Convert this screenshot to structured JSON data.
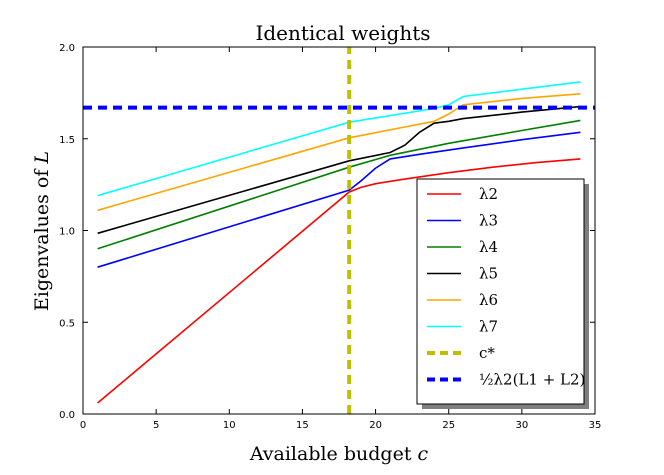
{
  "chart_data": {
    "type": "line",
    "title": "Identical weights",
    "xlabel": "Available budget c",
    "ylabel": "Eigenvalues of L",
    "xlim": [
      0,
      35
    ],
    "ylim": [
      0.0,
      2.0
    ],
    "xticks": [
      0,
      5,
      10,
      15,
      20,
      25,
      30,
      35
    ],
    "yticks": [
      0.0,
      0.5,
      1.0,
      1.5,
      2.0
    ],
    "xtick_labels": [
      "0",
      "5",
      "10",
      "15",
      "20",
      "25",
      "30",
      "35"
    ],
    "ytick_labels": [
      "0.0",
      "0.5",
      "1.0",
      "1.5",
      "2.0"
    ],
    "legend_position": "lower-right",
    "series": [
      {
        "name": "λ2",
        "color": "#ff0000",
        "style": "solid",
        "x": [
          1,
          18.2,
          19,
          20,
          22,
          25,
          28,
          31,
          34
        ],
        "y": [
          0.06,
          1.21,
          1.235,
          1.255,
          1.28,
          1.315,
          1.345,
          1.37,
          1.39
        ]
      },
      {
        "name": "λ3",
        "color": "#0000ff",
        "style": "solid",
        "x": [
          1,
          18.2,
          19,
          20,
          21,
          23,
          26,
          30,
          34
        ],
        "y": [
          0.8,
          1.22,
          1.27,
          1.34,
          1.39,
          1.415,
          1.45,
          1.495,
          1.535
        ]
      },
      {
        "name": "λ4",
        "color": "#008000",
        "style": "solid",
        "x": [
          1,
          18.2,
          21,
          25,
          30,
          34
        ],
        "y": [
          0.9,
          1.345,
          1.41,
          1.475,
          1.545,
          1.6
        ]
      },
      {
        "name": "λ5",
        "color": "#000000",
        "style": "solid",
        "x": [
          1,
          18.2,
          21,
          22,
          23,
          24,
          25,
          26,
          30,
          34
        ],
        "y": [
          0.985,
          1.38,
          1.425,
          1.465,
          1.535,
          1.585,
          1.595,
          1.61,
          1.645,
          1.675
        ]
      },
      {
        "name": "λ6",
        "color": "#ffa500",
        "style": "solid",
        "x": [
          1,
          18.2,
          24,
          25,
          26,
          30,
          34
        ],
        "y": [
          1.11,
          1.505,
          1.595,
          1.635,
          1.685,
          1.72,
          1.745
        ]
      },
      {
        "name": "λ7",
        "color": "#00ffff",
        "style": "solid",
        "x": [
          1,
          18.2,
          24,
          25,
          26,
          30,
          34
        ],
        "y": [
          1.19,
          1.59,
          1.665,
          1.685,
          1.73,
          1.77,
          1.81
        ]
      },
      {
        "name": "c*",
        "color": "#bfbf00",
        "style": "dashed-vertical",
        "x": [
          18.2,
          18.2
        ],
        "y": [
          0.0,
          2.0
        ]
      },
      {
        "name": "½λ2(L1 + L2)",
        "color": "#0000ff",
        "style": "dashed-horizontal",
        "x": [
          0,
          35
        ],
        "y": [
          1.67,
          1.67
        ]
      }
    ]
  }
}
